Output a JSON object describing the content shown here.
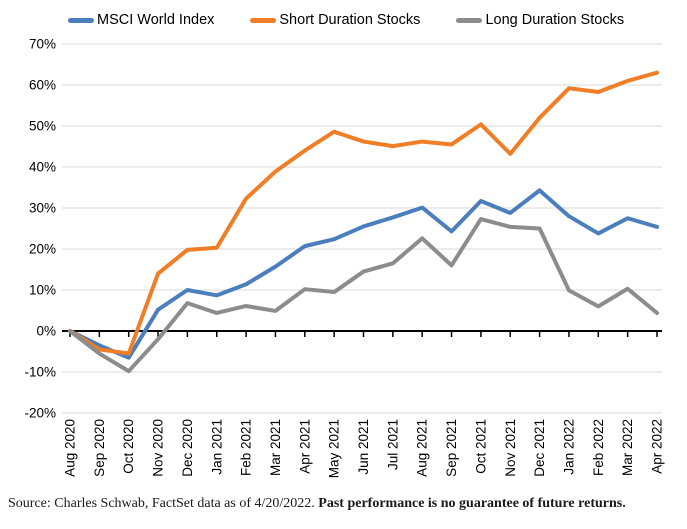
{
  "chart_data": {
    "type": "line",
    "title": "",
    "categories": [
      "Aug 2020",
      "Sep 2020",
      "Oct 2020",
      "Nov 2020",
      "Dec 2020",
      "Jan 2021",
      "Feb 2021",
      "Mar 2021",
      "Apr 2021",
      "May 2021",
      "Jun 2021",
      "Jul 2021",
      "Aug 2021",
      "Sep 2021",
      "Oct 2021",
      "Nov 2021",
      "Dec 2021",
      "Jan 2022",
      "Feb 2022",
      "Mar 2022",
      "Apr 2022"
    ],
    "series": [
      {
        "name": "MSCI World Index",
        "color": "#4A7EBD",
        "values": [
          0,
          -3.5,
          -6.5,
          5.2,
          10.0,
          8.7,
          11.4,
          15.7,
          20.7,
          22.4,
          25.5,
          27.7,
          30.1,
          24.3,
          31.7,
          28.8,
          34.3,
          28.0,
          23.8,
          27.5,
          25.4
        ]
      },
      {
        "name": "Short Duration Stocks",
        "color": "#F07E27",
        "values": [
          0,
          -4.5,
          -5.5,
          14.0,
          19.8,
          20.3,
          32.3,
          38.9,
          44.0,
          48.6,
          46.2,
          45.1,
          46.2,
          45.5,
          50.4,
          43.2,
          52.0,
          59.2,
          58.3,
          61.0,
          63.0
        ]
      },
      {
        "name": "Long Duration Stocks",
        "color": "#8C8C8C",
        "values": [
          0,
          -5.5,
          -9.8,
          -2.0,
          6.8,
          4.4,
          6.1,
          4.9,
          10.2,
          9.5,
          14.5,
          16.5,
          22.6,
          16.0,
          27.3,
          25.4,
          25.0,
          9.9,
          6.0,
          10.3,
          4.4
        ]
      }
    ],
    "ylim": [
      -20,
      70
    ],
    "yticks": [
      70,
      60,
      50,
      40,
      30,
      20,
      10,
      0,
      -10,
      -20
    ],
    "ytick_suffix": "%",
    "grid": true,
    "legend_position": "top",
    "x_label_rotation": -90
  },
  "colors": {
    "gridline": "#D9D9D9",
    "axis": "#000000",
    "tick_text": "#000000"
  },
  "footer": {
    "source_text": "Source: Charles Schwab, FactSet data as of 4/20/2022. ",
    "disclaimer_bold": "Past performance is no guarantee of future returns."
  }
}
